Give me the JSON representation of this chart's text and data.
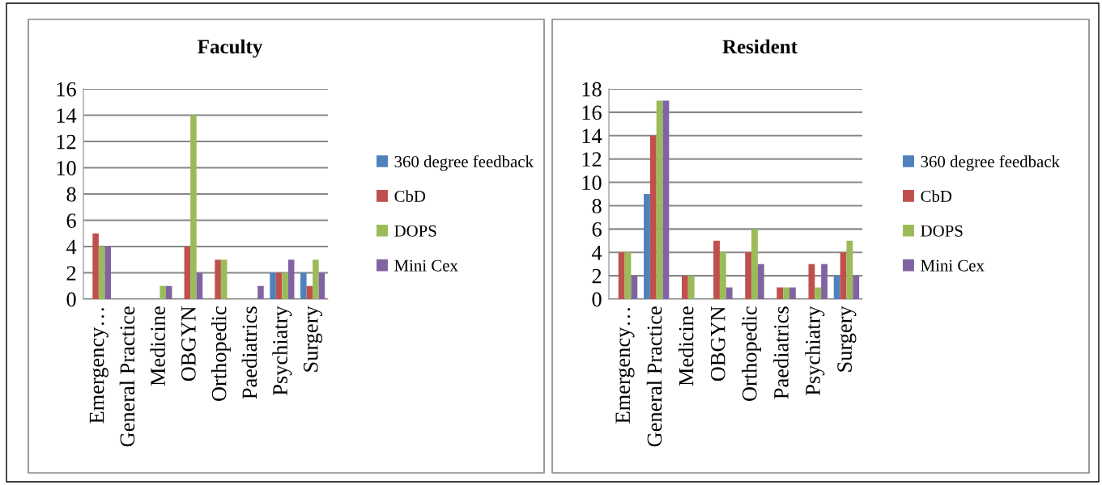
{
  "chart_data": [
    {
      "type": "bar",
      "title": "Faculty",
      "categories": [
        "Emergency…",
        "General Practice",
        "Medicine",
        "OBGYN",
        "Orthopedic",
        "Paediatrics",
        "Psychiatry",
        "Surgery"
      ],
      "series": [
        {
          "name": "360 degree feedback",
          "color": "#4f81bd",
          "values": [
            0,
            0,
            0,
            0,
            0,
            0,
            2,
            2
          ]
        },
        {
          "name": "CbD",
          "color": "#c0504d",
          "values": [
            5,
            0,
            0,
            4,
            3,
            0,
            2,
            1
          ]
        },
        {
          "name": "DOPS",
          "color": "#9bbb59",
          "values": [
            4,
            0,
            1,
            14,
            3,
            0,
            2,
            3
          ]
        },
        {
          "name": "Mini Cex",
          "color": "#8064a2",
          "values": [
            4,
            0,
            1,
            2,
            0,
            1,
            3,
            2
          ]
        }
      ],
      "ylim": [
        0,
        16
      ],
      "yticks": [
        0,
        2,
        4,
        6,
        8,
        10,
        12,
        14,
        16
      ],
      "grid": "y",
      "legend": "right"
    },
    {
      "type": "bar",
      "title": "Resident",
      "categories": [
        "Emergency…",
        "General Practice",
        "Medicine",
        "OBGYN",
        "Orthopedic",
        "Paediatrics",
        "Psychiatry",
        "Surgery"
      ],
      "series": [
        {
          "name": "360 degree feedback",
          "color": "#4f81bd",
          "values": [
            0,
            9,
            0,
            0,
            0,
            0,
            0,
            2
          ]
        },
        {
          "name": "CbD",
          "color": "#c0504d",
          "values": [
            4,
            14,
            2,
            5,
            4,
            1,
            3,
            4
          ]
        },
        {
          "name": "DOPS",
          "color": "#9bbb59",
          "values": [
            4,
            17,
            2,
            4,
            6,
            1,
            1,
            5
          ]
        },
        {
          "name": "Mini Cex",
          "color": "#8064a2",
          "values": [
            2,
            17,
            0,
            1,
            3,
            1,
            3,
            2
          ]
        }
      ],
      "ylim": [
        0,
        18
      ],
      "yticks": [
        0,
        2,
        4,
        6,
        8,
        10,
        12,
        14,
        16,
        18
      ],
      "grid": "y",
      "legend": "right"
    }
  ]
}
